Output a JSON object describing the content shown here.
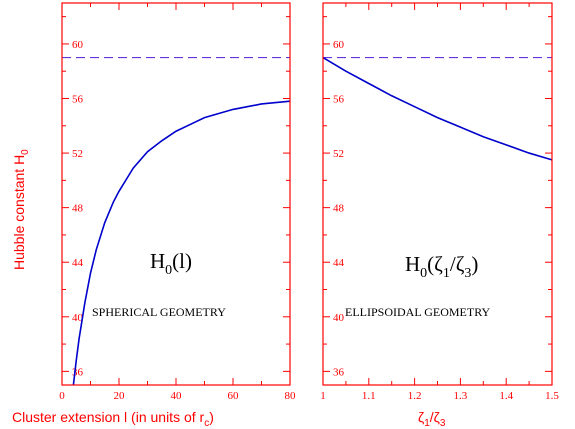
{
  "chart_data": [
    {
      "type": "line",
      "title": "",
      "xlabel": "Cluster extension l (in units of r_c)",
      "ylabel": "Hubble constant H_0",
      "xlim": [
        0,
        80
      ],
      "ylim": [
        35,
        63
      ],
      "xticks": [
        0,
        20,
        40,
        60,
        80
      ],
      "yticks": [
        36,
        40,
        44,
        48,
        52,
        56,
        60
      ],
      "x_tick_labels": [
        "0",
        "20",
        "40",
        "60",
        "80"
      ],
      "y_tick_labels": [
        "36",
        "40",
        "44",
        "48",
        "52",
        "56",
        "60"
      ],
      "series": [
        {
          "x": [
            4,
            5,
            6,
            8,
            10,
            12,
            15,
            18,
            20,
            25,
            30,
            35,
            40,
            45,
            50,
            55,
            60,
            65,
            70,
            75,
            80
          ],
          "y": [
            35.0,
            36.8,
            38.4,
            41.0,
            43.2,
            44.9,
            46.9,
            48.4,
            49.2,
            50.9,
            52.1,
            52.9,
            53.6,
            54.1,
            54.6,
            54.9,
            55.2,
            55.4,
            55.6,
            55.7,
            55.8
          ]
        }
      ],
      "reference_line": {
        "y": 59,
        "style": "dashed"
      },
      "annotations": {
        "main": "H_0(l)",
        "main_base": "H",
        "main_sub": "0",
        "main_rest": "(l)",
        "geometry": "SPHERICAL GEOMETRY"
      },
      "axis_labels": {
        "x_main": "Cluster extension l (in units of r",
        "x_sub": "c",
        "x_end": ")",
        "y_main": "Hubble constant H",
        "y_sub": "0"
      },
      "grid": false,
      "legend": "none"
    },
    {
      "type": "line",
      "title": "",
      "xlabel": "ζ_1/ζ_3",
      "ylabel": "",
      "xlim": [
        1.0,
        1.5
      ],
      "ylim": [
        35,
        63
      ],
      "xticks": [
        1.0,
        1.1,
        1.2,
        1.3,
        1.4,
        1.5
      ],
      "yticks": [
        36,
        40,
        44,
        48,
        52,
        56,
        60
      ],
      "x_tick_labels": [
        "1",
        "1.1",
        "1.2",
        "1.3",
        "1.4",
        "1.5"
      ],
      "y_tick_labels": [
        "36",
        "40",
        "44",
        "48",
        "52",
        "56",
        "60"
      ],
      "series": [
        {
          "x": [
            1.0,
            1.05,
            1.1,
            1.15,
            1.2,
            1.25,
            1.3,
            1.35,
            1.4,
            1.45,
            1.5
          ],
          "y": [
            59.0,
            58.0,
            57.1,
            56.2,
            55.4,
            54.6,
            53.9,
            53.2,
            52.6,
            52.0,
            51.5
          ]
        }
      ],
      "reference_line": {
        "y": 59,
        "style": "dashed"
      },
      "annotations": {
        "main": "H_0(ζ_1/ζ_3)",
        "main_base": "H",
        "main_sub": "0",
        "main_p1": "(ζ",
        "main_sub1": "1",
        "main_p2": "/ζ",
        "main_sub2": "3",
        "main_p3": ")",
        "geometry": "ELLIPSOIDAL GEOMETRY"
      },
      "axis_labels": {
        "x_a": "ζ",
        "x_a_sub": "1",
        "x_b": "/ζ",
        "x_b_sub": "3"
      },
      "grid": false,
      "legend": "none"
    }
  ],
  "colors": {
    "axes": "#ff0000",
    "curve": "#0000cc",
    "reference": "#6633dd",
    "annotation": "#000000"
  }
}
